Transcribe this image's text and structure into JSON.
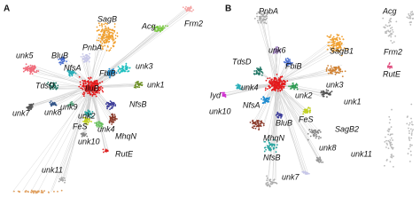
{
  "panels": [
    {
      "letter": "A",
      "labels": [
        "SagB",
        "Acg",
        "Frm2",
        "PnbA",
        "BluB",
        "unk5",
        "NfsA",
        "FbiB",
        "unk3",
        "unk1",
        "IluB",
        "TdsD",
        "NfsB",
        "unk7",
        "unk8",
        "unk9",
        "unk2",
        "FeS",
        "unk4",
        "MhqN",
        "unk10",
        "RutE",
        "unk11"
      ]
    },
    {
      "letter": "B",
      "labels": [
        "PnbA",
        "Acg",
        "unk6",
        "FbiB",
        "SagB1",
        "Frm2",
        "TdsD",
        "RutE",
        "unk3",
        "unk4",
        "Iyd",
        "unk2",
        "NfsA",
        "unk1",
        "unk10",
        "BluB",
        "FeS",
        "SagB2",
        "MhqN",
        "unk8",
        "unk11",
        "NfsB",
        "unk7"
      ]
    }
  ]
}
